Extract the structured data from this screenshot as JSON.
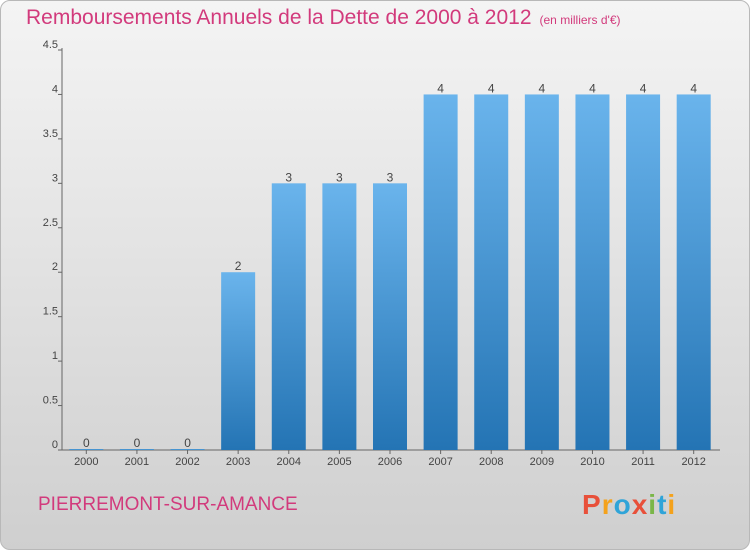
{
  "title": "Remboursements Annuels de la Dette de 2000 à 2012",
  "unit": "(en milliers d'€)",
  "commune": "PIERREMONT-SUR-AMANCE",
  "logo": {
    "letters": [
      "P",
      "r",
      "o",
      "x",
      "i",
      "t",
      "i"
    ],
    "colors": [
      "#e8503a",
      "#f4a21c",
      "#2fa4d8",
      "#e8503a",
      "#7ab648",
      "#2fa4d8",
      "#f4a21c"
    ]
  },
  "colors": {
    "bar_light": "#6ab4ec",
    "bar_dark": "#2474b4",
    "title": "#d23a7c"
  },
  "chart_data": {
    "type": "bar",
    "title": "Remboursements Annuels de la Dette de 2000 à 2012",
    "ylabel": "(en milliers d'€)",
    "xlabel": "",
    "categories": [
      "2000",
      "2001",
      "2002",
      "2003",
      "2004",
      "2005",
      "2006",
      "2007",
      "2008",
      "2009",
      "2010",
      "2011",
      "2012"
    ],
    "values": [
      0,
      0,
      0,
      2,
      3,
      3,
      3,
      4,
      4,
      4,
      4,
      4,
      4
    ],
    "labels": [
      "0",
      "0",
      "0",
      "2",
      "3",
      "3",
      "3",
      "4",
      "4",
      "4",
      "4",
      "4",
      "4"
    ],
    "yticks": [
      0,
      0.5,
      1,
      1.5,
      2,
      2.5,
      3,
      3.5,
      4,
      4.5
    ],
    "ytick_labels": [
      "0",
      "0.5",
      "1",
      "1.5",
      "2",
      "2.5",
      "3",
      "3.5",
      "4",
      "4.5"
    ],
    "ylim": [
      0,
      4.5
    ],
    "grid": false,
    "legend": "none"
  }
}
